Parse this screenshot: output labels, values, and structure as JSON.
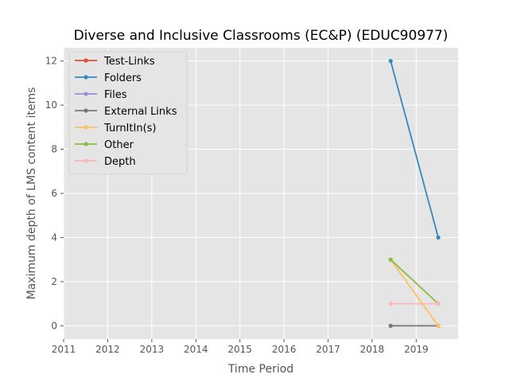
{
  "chart_data": {
    "type": "line",
    "title": "Diverse and Inclusive Classrooms (EC&P) (EDUC90977)",
    "xlabel": "Time Period",
    "ylabel": "Maximum depth of LMS content items",
    "xlim": [
      2011,
      2019.95
    ],
    "ylim": [
      -0.6,
      12.6
    ],
    "xticks": [
      2011,
      2012,
      2013,
      2014,
      2015,
      2016,
      2017,
      2018,
      2019
    ],
    "yticks": [
      0,
      2,
      4,
      6,
      8,
      10,
      12
    ],
    "grid": true,
    "legend_position": "top-left",
    "series": [
      {
        "name": "Test-Links",
        "color": "#E24A33",
        "x": [],
        "y": []
      },
      {
        "name": "Folders",
        "color": "#348ABD",
        "x": [
          2018.42,
          2019.5
        ],
        "y": [
          12,
          4
        ]
      },
      {
        "name": "Files",
        "color": "#988ED5",
        "x": [],
        "y": []
      },
      {
        "name": "External Links",
        "color": "#777777",
        "x": [
          2018.42,
          2019.5
        ],
        "y": [
          0,
          0
        ]
      },
      {
        "name": "TurnItIn(s)",
        "color": "#FBC15E",
        "x": [
          2018.42,
          2019.5
        ],
        "y": [
          3,
          0
        ]
      },
      {
        "name": "Other",
        "color": "#8EBA42",
        "x": [
          2018.42,
          2019.5
        ],
        "y": [
          3,
          1
        ]
      },
      {
        "name": "Depth",
        "color": "#FFB5B8",
        "x": [
          2018.42,
          2019.5
        ],
        "y": [
          1,
          1
        ]
      }
    ]
  }
}
